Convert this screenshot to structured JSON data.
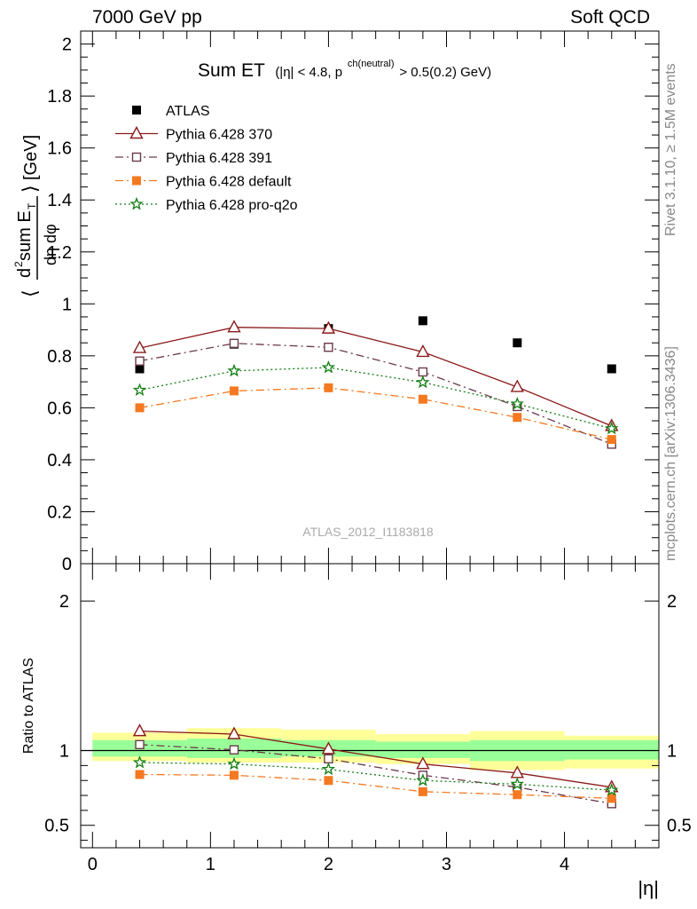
{
  "header": {
    "left": "7000 GeV pp",
    "right": "Soft QCD"
  },
  "side_labels": {
    "rivet": "Rivet 3.1.10, ≥ 1.5M events",
    "mcplots": "mcplots.cern.ch [arXiv:1306.3436]"
  },
  "chart_data": [
    {
      "type": "line",
      "title_main": "Sum ET",
      "title_cond_a": "(|η| < 4.8, p",
      "title_cond_sup": "ch(neutral)",
      "title_cond_b": " > 0.5(0.2) GeV)",
      "ylabel": "⟨ d²sum E_T / dη dφ ⟩ [GeV]",
      "watermark": "ATLAS_2012_I1183818",
      "xlim": [
        -0.1,
        4.8
      ],
      "ylim": [
        0,
        2.05
      ],
      "y_ticks": [
        0,
        0.2,
        0.4,
        0.6,
        0.8,
        1,
        1.2,
        1.4,
        1.6,
        1.8,
        2
      ],
      "y_tick_labels": [
        "0",
        "0.2",
        "0.4",
        "0.6",
        "0.8",
        "1",
        "1.2",
        "1.4",
        "1.6",
        "1.8",
        "2"
      ],
      "legend_position": "top-left",
      "x": [
        0.4,
        1.2,
        2.0,
        2.8,
        3.6,
        4.4
      ],
      "series": [
        {
          "name": "ATLAS",
          "color": "#000000",
          "marker": "square",
          "values": [
            0.75,
            0.845,
            0.905,
            0.935,
            0.85,
            0.75
          ]
        },
        {
          "name": "Pythia 6.428 370",
          "color": "#8b1a1a",
          "marker": "triangle-open",
          "line": "solid",
          "values": [
            0.83,
            0.91,
            0.905,
            0.815,
            0.68,
            0.53
          ]
        },
        {
          "name": "Pythia 6.428 391",
          "color": "#6b3a4a",
          "marker": "square-open",
          "line": "dashdot",
          "values": [
            0.78,
            0.848,
            0.833,
            0.738,
            0.605,
            0.46
          ]
        },
        {
          "name": "Pythia 6.428 default",
          "color": "#f47920",
          "marker": "square",
          "line": "dashdot",
          "values": [
            0.6,
            0.665,
            0.677,
            0.633,
            0.563,
            0.478
          ]
        },
        {
          "name": "Pythia 6.428 pro-q2o",
          "color": "#117d11",
          "marker": "star",
          "line": "dotted",
          "values": [
            0.668,
            0.742,
            0.755,
            0.698,
            0.615,
            0.52
          ]
        }
      ]
    },
    {
      "type": "line",
      "ylabel": "Ratio to ATLAS",
      "xlabel": "|η|",
      "xlim": [
        -0.1,
        4.8
      ],
      "ylim": [
        0.35,
        2.25
      ],
      "x_ticks": [
        0,
        1,
        2,
        3,
        4
      ],
      "x_tick_labels": [
        "0",
        "1",
        "2",
        "3",
        "4"
      ],
      "y_ticks": [
        0.5,
        1,
        2
      ],
      "y_tick_labels": [
        "0.5",
        "1",
        "2"
      ],
      "x": [
        0.4,
        1.2,
        2.0,
        2.8,
        3.6,
        4.4
      ],
      "bands": {
        "x_edges": [
          0.0,
          0.8,
          1.6,
          2.4,
          3.2,
          4.0,
          4.8
        ],
        "total": [
          [
            0.93,
            1.12
          ],
          [
            0.92,
            1.15
          ],
          [
            0.92,
            1.14
          ],
          [
            0.91,
            1.11
          ],
          [
            0.87,
            1.13
          ],
          [
            0.88,
            1.1
          ]
        ],
        "stat": [
          [
            0.96,
            1.07
          ],
          [
            0.95,
            1.08
          ],
          [
            0.96,
            1.07
          ],
          [
            0.95,
            1.06
          ],
          [
            0.93,
            1.07
          ],
          [
            0.94,
            1.07
          ]
        ]
      },
      "series": [
        {
          "name": "Pythia 6.428 370",
          "color": "#8b1a1a",
          "marker": "triangle-open",
          "line": "solid",
          "values": [
            1.13,
            1.11,
            1.01,
            0.91,
            0.85,
            0.755
          ]
        },
        {
          "name": "Pythia 6.428 391",
          "color": "#6b3a4a",
          "marker": "square-open",
          "line": "dashdot",
          "values": [
            1.04,
            1.005,
            0.945,
            0.835,
            0.755,
            0.645
          ]
        },
        {
          "name": "Pythia 6.428 default",
          "color": "#f47920",
          "marker": "square",
          "line": "dashdot",
          "values": [
            0.84,
            0.835,
            0.8,
            0.725,
            0.705,
            0.68
          ]
        },
        {
          "name": "Pythia 6.428 pro-q2o",
          "color": "#117d11",
          "marker": "star",
          "line": "dotted",
          "values": [
            0.92,
            0.91,
            0.875,
            0.8,
            0.775,
            0.735
          ]
        }
      ]
    }
  ]
}
